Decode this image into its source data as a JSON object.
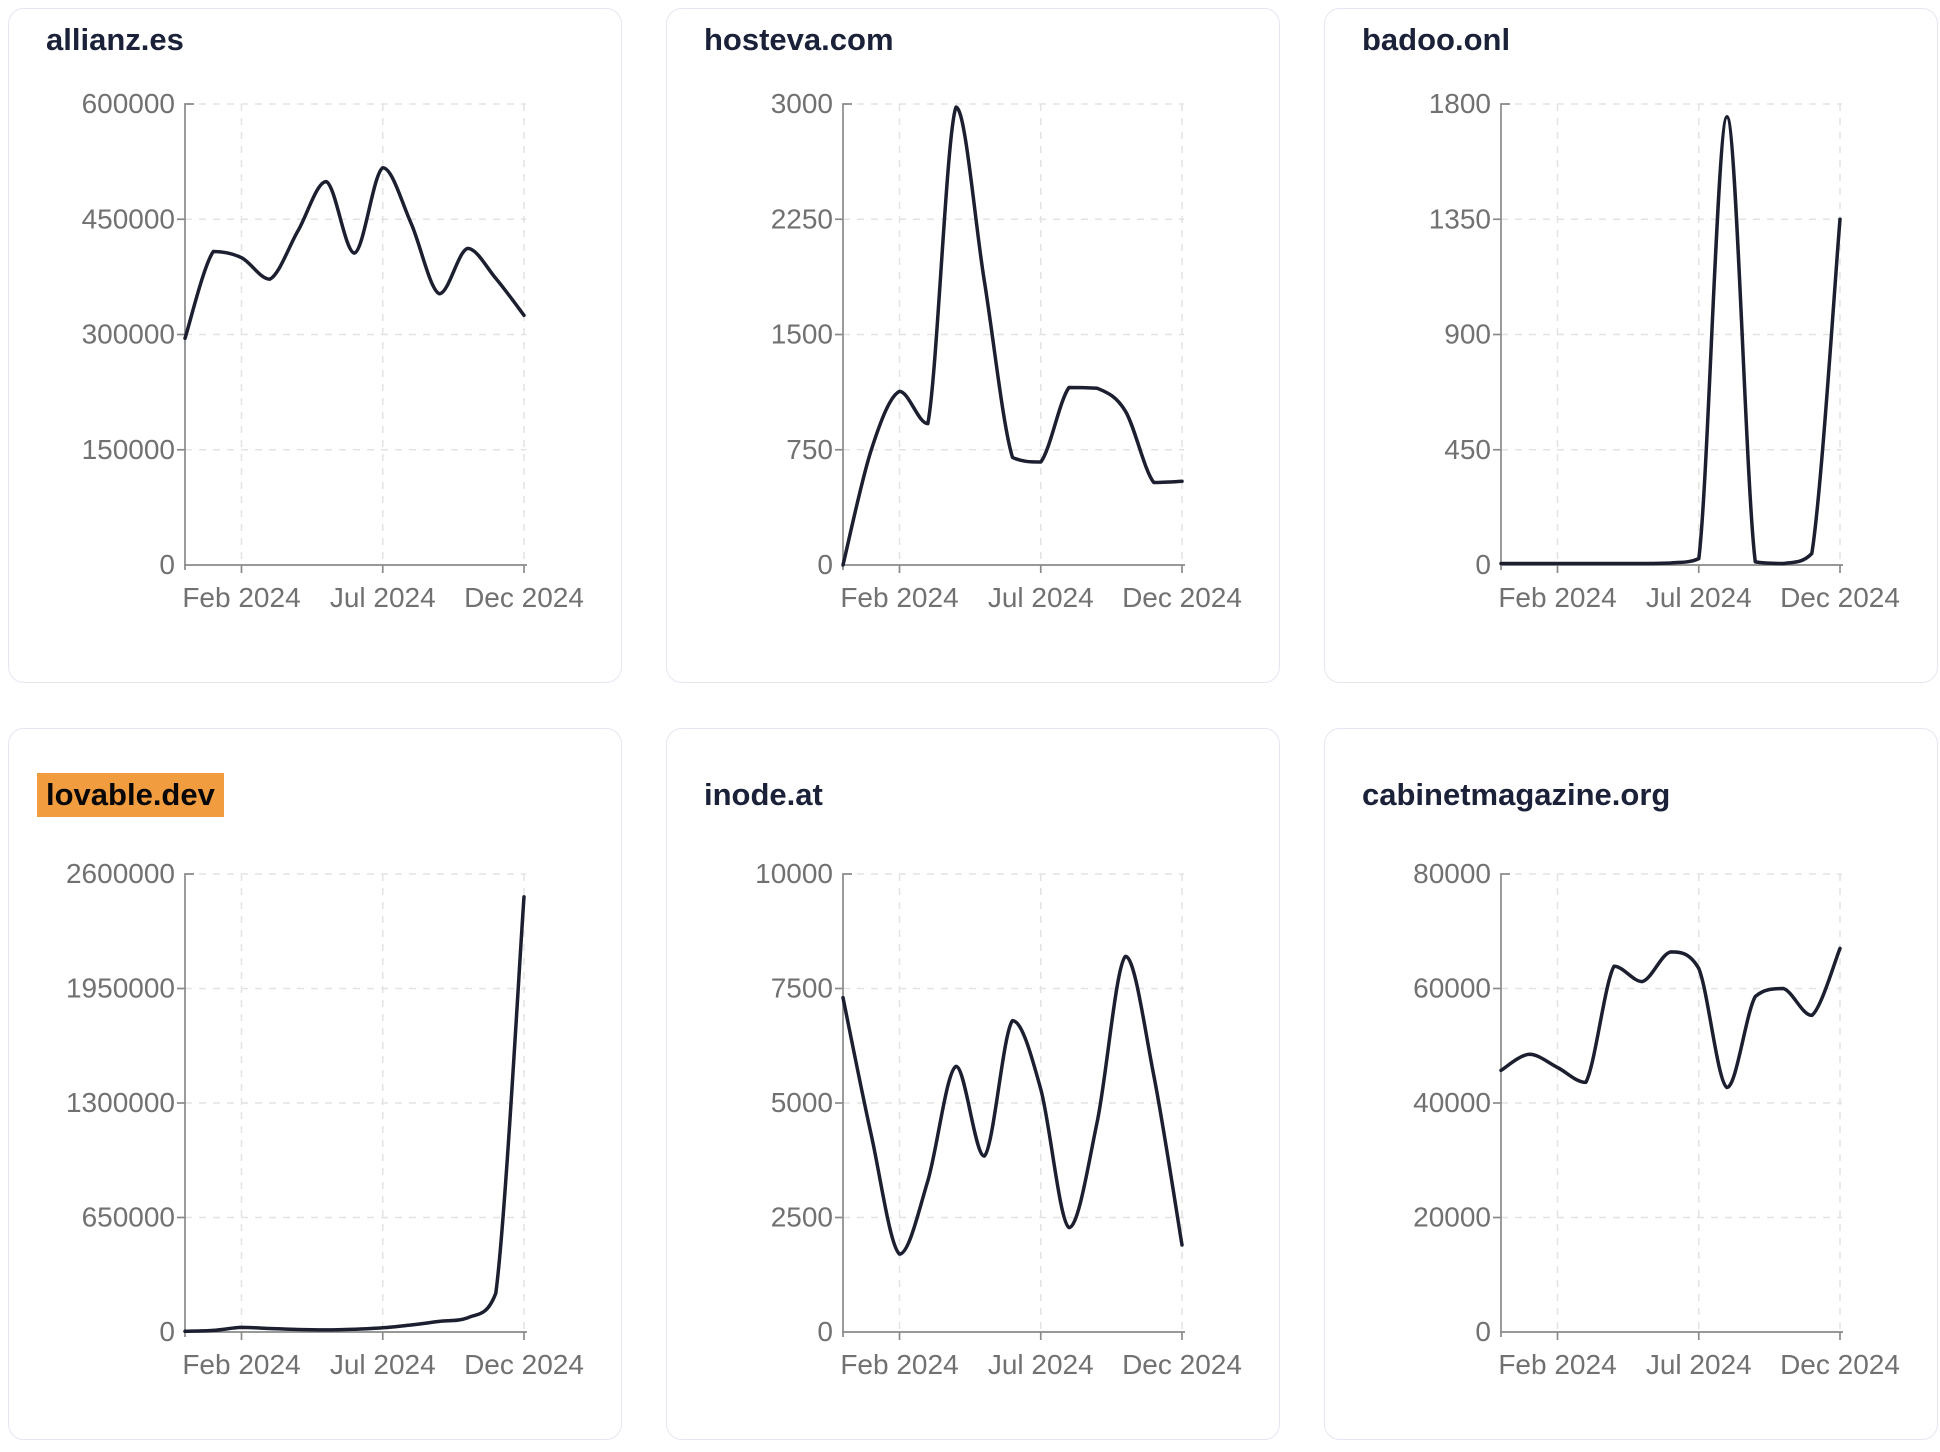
{
  "style": {
    "line_color": "#1b1f30",
    "title_color": "#1a2138",
    "tick_label_color": "#717171",
    "axis_color": "#8a8a8a",
    "grid_color": "#e3e3e3",
    "highlight_bg": "#f29c40",
    "highlight_text": "#070707",
    "card_border": "#e4e7f0",
    "card_bg": "#ffffff"
  },
  "x_axis": {
    "tick_labels": [
      "Feb 2024",
      "Jul 2024",
      "Dec 2024"
    ],
    "tick_month_indices": [
      2,
      7,
      12
    ],
    "n_points": 13
  },
  "chart_data": [
    {
      "type": "line",
      "title": "allianz.es",
      "highlighted": false,
      "ylim": [
        0,
        600000
      ],
      "y_ticks": [
        0,
        150000,
        300000,
        450000,
        600000
      ],
      "x_tick_labels": [
        "Feb 2024",
        "Jul 2024",
        "Dec 2024"
      ],
      "values": [
        295000,
        408000,
        400000,
        372000,
        435000,
        499000,
        406000,
        517000,
        445000,
        353000,
        412000,
        373000,
        325000
      ]
    },
    {
      "type": "line",
      "title": "hosteva.com",
      "highlighted": false,
      "ylim": [
        0,
        3000
      ],
      "y_ticks": [
        0,
        750,
        1500,
        2250,
        3000
      ],
      "x_tick_labels": [
        "Feb 2024",
        "Jul 2024",
        "Dec 2024"
      ],
      "values": [
        0,
        750,
        1130,
        920,
        2980,
        1850,
        700,
        670,
        1155,
        1150,
        1000,
        537,
        545
      ]
    },
    {
      "type": "line",
      "title": "badoo.onl",
      "highlighted": false,
      "ylim": [
        0,
        1800
      ],
      "y_ticks": [
        0,
        450,
        900,
        1350,
        1800
      ],
      "x_tick_labels": [
        "Feb 2024",
        "Jul 2024",
        "Dec 2024"
      ],
      "values": [
        6,
        6,
        6,
        6,
        6,
        6,
        8,
        25,
        1750,
        12,
        6,
        45,
        1350
      ]
    },
    {
      "type": "line",
      "title": "lovable.dev",
      "highlighted": true,
      "ylim": [
        0,
        2600000
      ],
      "y_ticks": [
        0,
        650000,
        1300000,
        1950000,
        2600000
      ],
      "x_tick_labels": [
        "Feb 2024",
        "Jul 2024",
        "Dec 2024"
      ],
      "values": [
        4000,
        9000,
        26000,
        20000,
        14000,
        12000,
        16000,
        24000,
        40000,
        60000,
        80000,
        220000,
        2470000
      ]
    },
    {
      "type": "line",
      "title": "inode.at",
      "highlighted": false,
      "ylim": [
        0,
        10000
      ],
      "y_ticks": [
        0,
        2500,
        5000,
        7500,
        10000
      ],
      "x_tick_labels": [
        "Feb 2024",
        "Jul 2024",
        "Dec 2024"
      ],
      "values": [
        7300,
        4300,
        1700,
        3300,
        5800,
        3840,
        6800,
        5300,
        2280,
        4600,
        8200,
        5600,
        1900
      ]
    },
    {
      "type": "line",
      "title": "cabinetmagazine.org",
      "highlighted": false,
      "ylim": [
        0,
        80000
      ],
      "y_ticks": [
        0,
        20000,
        40000,
        60000,
        80000
      ],
      "x_tick_labels": [
        "Feb 2024",
        "Jul 2024",
        "Dec 2024"
      ],
      "values": [
        45700,
        48500,
        46200,
        43600,
        63900,
        61200,
        66400,
        63500,
        42700,
        58600,
        60000,
        55300,
        67000
      ]
    }
  ]
}
